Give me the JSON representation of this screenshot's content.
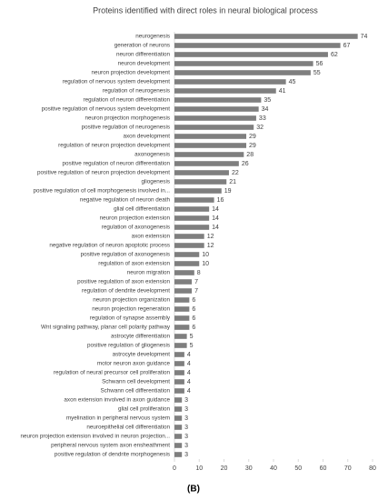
{
  "chart_data": {
    "type": "bar",
    "orientation": "horizontal",
    "title": "Proteins identified with direct roles in neural biological process",
    "categories": [
      "neurogenesis",
      "generation of neurons",
      "neuron differentiation",
      "neuron development",
      "neuron projection development",
      "regulation of nervous system development",
      "regulation of neurogenesis",
      "regulation of neuron differentiation",
      "positive regulation of nervous system development",
      "neuron projection morphogenesis",
      "positive regulation of neurogenesis",
      "axon development",
      "regulation of neuron projection development",
      "axonogenesis",
      "positive regulation of neuron differentiation",
      "positive regulation of neuron projection development",
      "gliogenesis",
      "positive regulation of cell morphogenesis involved in...",
      "negative regulation of neuron death",
      "glial cell differentiation",
      "neuron projection extension",
      "regulation of axonogenesis",
      "axon extension",
      "negative regulation of neuron apoptotic process",
      "positive regulation of axonogenesis",
      "regulation of axon extension",
      "neuron migration",
      "positive regulation of axon extension",
      "regulation of dendrite development",
      "neuron projection organization",
      "neuron projection regeneration",
      "regulation of synapse assembly",
      "Wnt signaling pathway, planar cell polarity pathway",
      "astrocyte differentiation",
      "positive regulation of gliogenesis",
      "astrocyte development",
      "motor neuron axon guidance",
      "regulation of neural precursor cell proliferation",
      "Schwann cell development",
      "Schwann cell differentiation",
      "axon extension involved in axon guidance",
      "glial cell proliferation",
      "myelination in peripheral nervous system",
      "neuroepithelial cell differentiation",
      "neuron projection extension involved in neuron projection...",
      "peripheral nervous system axon ensheathment",
      "positive regulation of dendrite morphogenesis"
    ],
    "values": [
      74,
      67,
      62,
      56,
      55,
      45,
      41,
      35,
      34,
      33,
      32,
      29,
      29,
      28,
      26,
      22,
      21,
      19,
      16,
      14,
      14,
      14,
      12,
      12,
      10,
      10,
      8,
      7,
      7,
      6,
      6,
      6,
      6,
      5,
      5,
      4,
      4,
      4,
      4,
      4,
      3,
      3,
      3,
      3,
      3,
      3,
      3
    ],
    "color": "#7f7f7f",
    "xlim": [
      0,
      80
    ],
    "xticks": [
      0,
      10,
      20,
      30,
      40,
      50,
      60,
      70,
      80
    ],
    "caption": "(B)"
  }
}
